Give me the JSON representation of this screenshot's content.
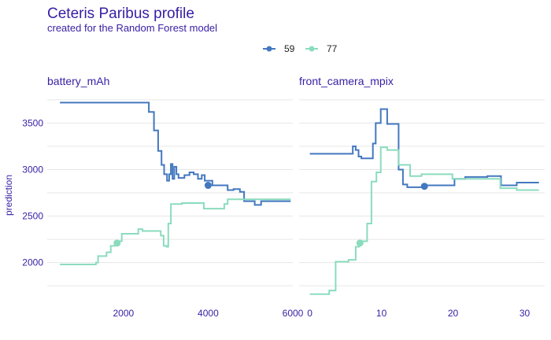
{
  "title": "Ceteris Paribus profile",
  "subtitle": "created for the Random Forest model",
  "ylabel": "prediction",
  "legend": [
    {
      "label": "59",
      "color": "#4378bf"
    },
    {
      "label": "77",
      "color": "#8bdcbe"
    }
  ],
  "colors": {
    "title": "#371ea3",
    "grid": "#e6e6e6"
  },
  "chart_data": [
    {
      "type": "line",
      "title": "battery_mAh",
      "xlabel": "",
      "ylabel": "prediction",
      "xticks": [
        2000,
        4000,
        6000
      ],
      "yticks": [
        2000,
        2500,
        3000,
        3500
      ],
      "xlim": [
        200,
        6000
      ],
      "ylim": [
        1650,
        3850
      ],
      "grid": true,
      "legend_position": "top",
      "series": [
        {
          "name": "59",
          "color": "#4378bf",
          "points": [
            [
              500,
              3720
            ],
            [
              2600,
              3720
            ],
            [
              2600,
              3620
            ],
            [
              2720,
              3620
            ],
            [
              2720,
              3420
            ],
            [
              2820,
              3420
            ],
            [
              2820,
              3200
            ],
            [
              2900,
              3200
            ],
            [
              2900,
              3050
            ],
            [
              2960,
              3050
            ],
            [
              2960,
              2950
            ],
            [
              3030,
              2950
            ],
            [
              3030,
              2880
            ],
            [
              3080,
              2880
            ],
            [
              3080,
              2950
            ],
            [
              3120,
              2950
            ],
            [
              3120,
              3060
            ],
            [
              3160,
              3060
            ],
            [
              3160,
              2900
            ],
            [
              3200,
              2900
            ],
            [
              3200,
              3030
            ],
            [
              3250,
              3030
            ],
            [
              3250,
              2950
            ],
            [
              3300,
              2950
            ],
            [
              3300,
              2910
            ],
            [
              3440,
              2910
            ],
            [
              3440,
              2940
            ],
            [
              3560,
              2940
            ],
            [
              3560,
              2970
            ],
            [
              3660,
              2970
            ],
            [
              3660,
              2950
            ],
            [
              3760,
              2950
            ],
            [
              3760,
              2900
            ],
            [
              3850,
              2900
            ],
            [
              3850,
              2940
            ],
            [
              3920,
              2940
            ],
            [
              3920,
              2880
            ],
            [
              4100,
              2880
            ],
            [
              4100,
              2830
            ],
            [
              4460,
              2830
            ],
            [
              4460,
              2780
            ],
            [
              4600,
              2780
            ],
            [
              4600,
              2790
            ],
            [
              4750,
              2790
            ],
            [
              4750,
              2760
            ],
            [
              4850,
              2760
            ],
            [
              4850,
              2660
            ],
            [
              5100,
              2660
            ],
            [
              5100,
              2620
            ],
            [
              5250,
              2620
            ],
            [
              5250,
              2660
            ],
            [
              5950,
              2660
            ]
          ],
          "observation": {
            "x": 4000,
            "y": 2830
          }
        },
        {
          "name": "77",
          "color": "#8bdcbe",
          "points": [
            [
              500,
              1980
            ],
            [
              1350,
              1980
            ],
            [
              1350,
              2000
            ],
            [
              1400,
              2000
            ],
            [
              1400,
              2070
            ],
            [
              1600,
              2070
            ],
            [
              1600,
              2110
            ],
            [
              1700,
              2110
            ],
            [
              1700,
              2180
            ],
            [
              1800,
              2180
            ],
            [
              1800,
              2230
            ],
            [
              1960,
              2230
            ],
            [
              1960,
              2310
            ],
            [
              2350,
              2310
            ],
            [
              2350,
              2360
            ],
            [
              2450,
              2360
            ],
            [
              2450,
              2340
            ],
            [
              2880,
              2340
            ],
            [
              2880,
              2290
            ],
            [
              2950,
              2290
            ],
            [
              2950,
              2180
            ],
            [
              3020,
              2180
            ],
            [
              3020,
              2170
            ],
            [
              3060,
              2170
            ],
            [
              3060,
              2420
            ],
            [
              3120,
              2420
            ],
            [
              3120,
              2630
            ],
            [
              3380,
              2630
            ],
            [
              3380,
              2640
            ],
            [
              3900,
              2640
            ],
            [
              3900,
              2580
            ],
            [
              4380,
              2580
            ],
            [
              4380,
              2630
            ],
            [
              4460,
              2630
            ],
            [
              4460,
              2680
            ],
            [
              5950,
              2680
            ]
          ],
          "observation": {
            "x": 1850,
            "y": 2210
          }
        }
      ]
    },
    {
      "type": "line",
      "title": "front_camera_mpix",
      "xlabel": "",
      "ylabel": "",
      "xticks": [
        0,
        10,
        20,
        30
      ],
      "yticks": [
        2000,
        2500,
        3000,
        3500
      ],
      "xlim": [
        -1.5,
        32.8
      ],
      "ylim": [
        1650,
        3850
      ],
      "grid": true,
      "legend_position": "top",
      "series": [
        {
          "name": "59",
          "color": "#4378bf",
          "points": [
            [
              0,
              3170
            ],
            [
              6,
              3170
            ],
            [
              6,
              3250
            ],
            [
              6.4,
              3250
            ],
            [
              6.4,
              3210
            ],
            [
              6.8,
              3210
            ],
            [
              6.8,
              3140
            ],
            [
              7.2,
              3140
            ],
            [
              7.2,
              3120
            ],
            [
              8.8,
              3120
            ],
            [
              8.8,
              3280
            ],
            [
              9.2,
              3280
            ],
            [
              9.2,
              3500
            ],
            [
              9.9,
              3500
            ],
            [
              9.9,
              3650
            ],
            [
              10.8,
              3650
            ],
            [
              10.8,
              3490
            ],
            [
              12.4,
              3490
            ],
            [
              12.4,
              3000
            ],
            [
              13,
              3000
            ],
            [
              13,
              2840
            ],
            [
              13.6,
              2840
            ],
            [
              13.6,
              2810
            ],
            [
              16.2,
              2810
            ],
            [
              16.2,
              2830
            ],
            [
              20.2,
              2830
            ],
            [
              20.2,
              2900
            ],
            [
              21.7,
              2900
            ],
            [
              21.7,
              2920
            ],
            [
              24.8,
              2920
            ],
            [
              24.8,
              2930
            ],
            [
              26.7,
              2930
            ],
            [
              26.7,
              2830
            ],
            [
              28.9,
              2830
            ],
            [
              28.9,
              2860
            ],
            [
              32,
              2860
            ]
          ],
          "observation": {
            "x": 16,
            "y": 2820
          }
        },
        {
          "name": "77",
          "color": "#8bdcbe",
          "points": [
            [
              0,
              1660
            ],
            [
              2.7,
              1660
            ],
            [
              2.7,
              1700
            ],
            [
              3.6,
              1700
            ],
            [
              3.6,
              2010
            ],
            [
              5.4,
              2010
            ],
            [
              5.4,
              2030
            ],
            [
              6.4,
              2030
            ],
            [
              6.4,
              2170
            ],
            [
              6.9,
              2170
            ],
            [
              6.9,
              2210
            ],
            [
              7.3,
              2210
            ],
            [
              7.3,
              2230
            ],
            [
              8,
              2230
            ],
            [
              8,
              2420
            ],
            [
              8.6,
              2420
            ],
            [
              8.6,
              2870
            ],
            [
              9.3,
              2870
            ],
            [
              9.3,
              2970
            ],
            [
              9.9,
              2970
            ],
            [
              9.9,
              3240
            ],
            [
              10.8,
              3240
            ],
            [
              10.8,
              3210
            ],
            [
              12.4,
              3210
            ],
            [
              12.4,
              3050
            ],
            [
              14,
              3050
            ],
            [
              14,
              2930
            ],
            [
              15.6,
              2930
            ],
            [
              15.6,
              2950
            ],
            [
              19.9,
              2950
            ],
            [
              19.9,
              2900
            ],
            [
              26.6,
              2900
            ],
            [
              26.6,
              2800
            ],
            [
              28.9,
              2800
            ],
            [
              28.9,
              2780
            ],
            [
              32,
              2780
            ]
          ],
          "observation": {
            "x": 7,
            "y": 2210
          }
        }
      ]
    }
  ]
}
